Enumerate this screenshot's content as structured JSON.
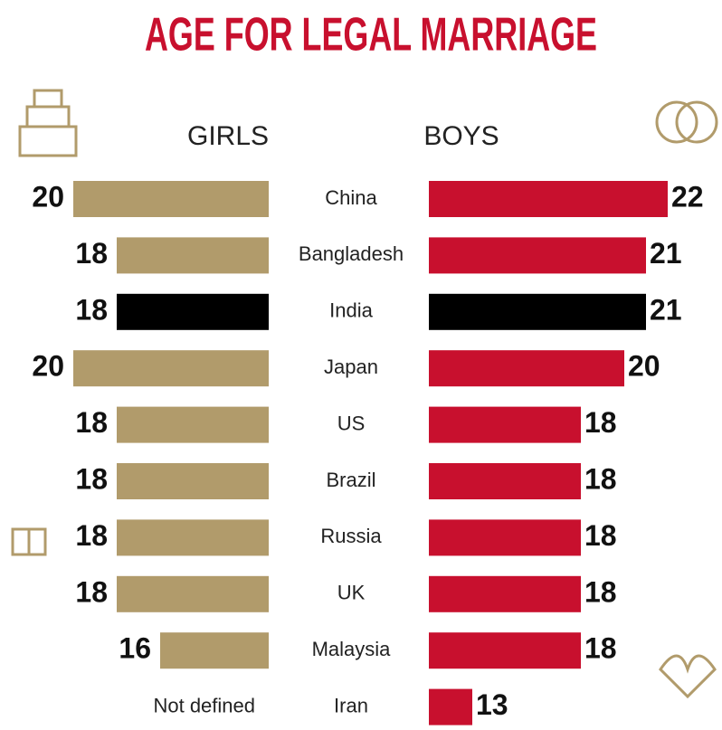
{
  "chart_data": {
    "type": "butterfly-bar",
    "title": "AGE FOR LEGAL MARRIAGE",
    "categories": [
      "China",
      "Bangladesh",
      "India",
      "Japan",
      "US",
      "Brazil",
      "Russia",
      "UK",
      "Malaysia",
      "Iran"
    ],
    "series": [
      {
        "name": "GIRLS",
        "color": "#b19b6b",
        "values": [
          20,
          18,
          18,
          20,
          18,
          18,
          18,
          18,
          16,
          null
        ],
        "value_labels": [
          null,
          null,
          null,
          null,
          null,
          null,
          null,
          null,
          null,
          "Not defined"
        ]
      },
      {
        "name": "BOYS",
        "color": "#c8102e",
        "values": [
          22,
          21,
          21,
          20,
          18,
          18,
          18,
          18,
          18,
          13
        ]
      }
    ],
    "highlight_category": "India",
    "highlight_color": "#000000",
    "xlim": [
      11,
      22
    ]
  }
}
